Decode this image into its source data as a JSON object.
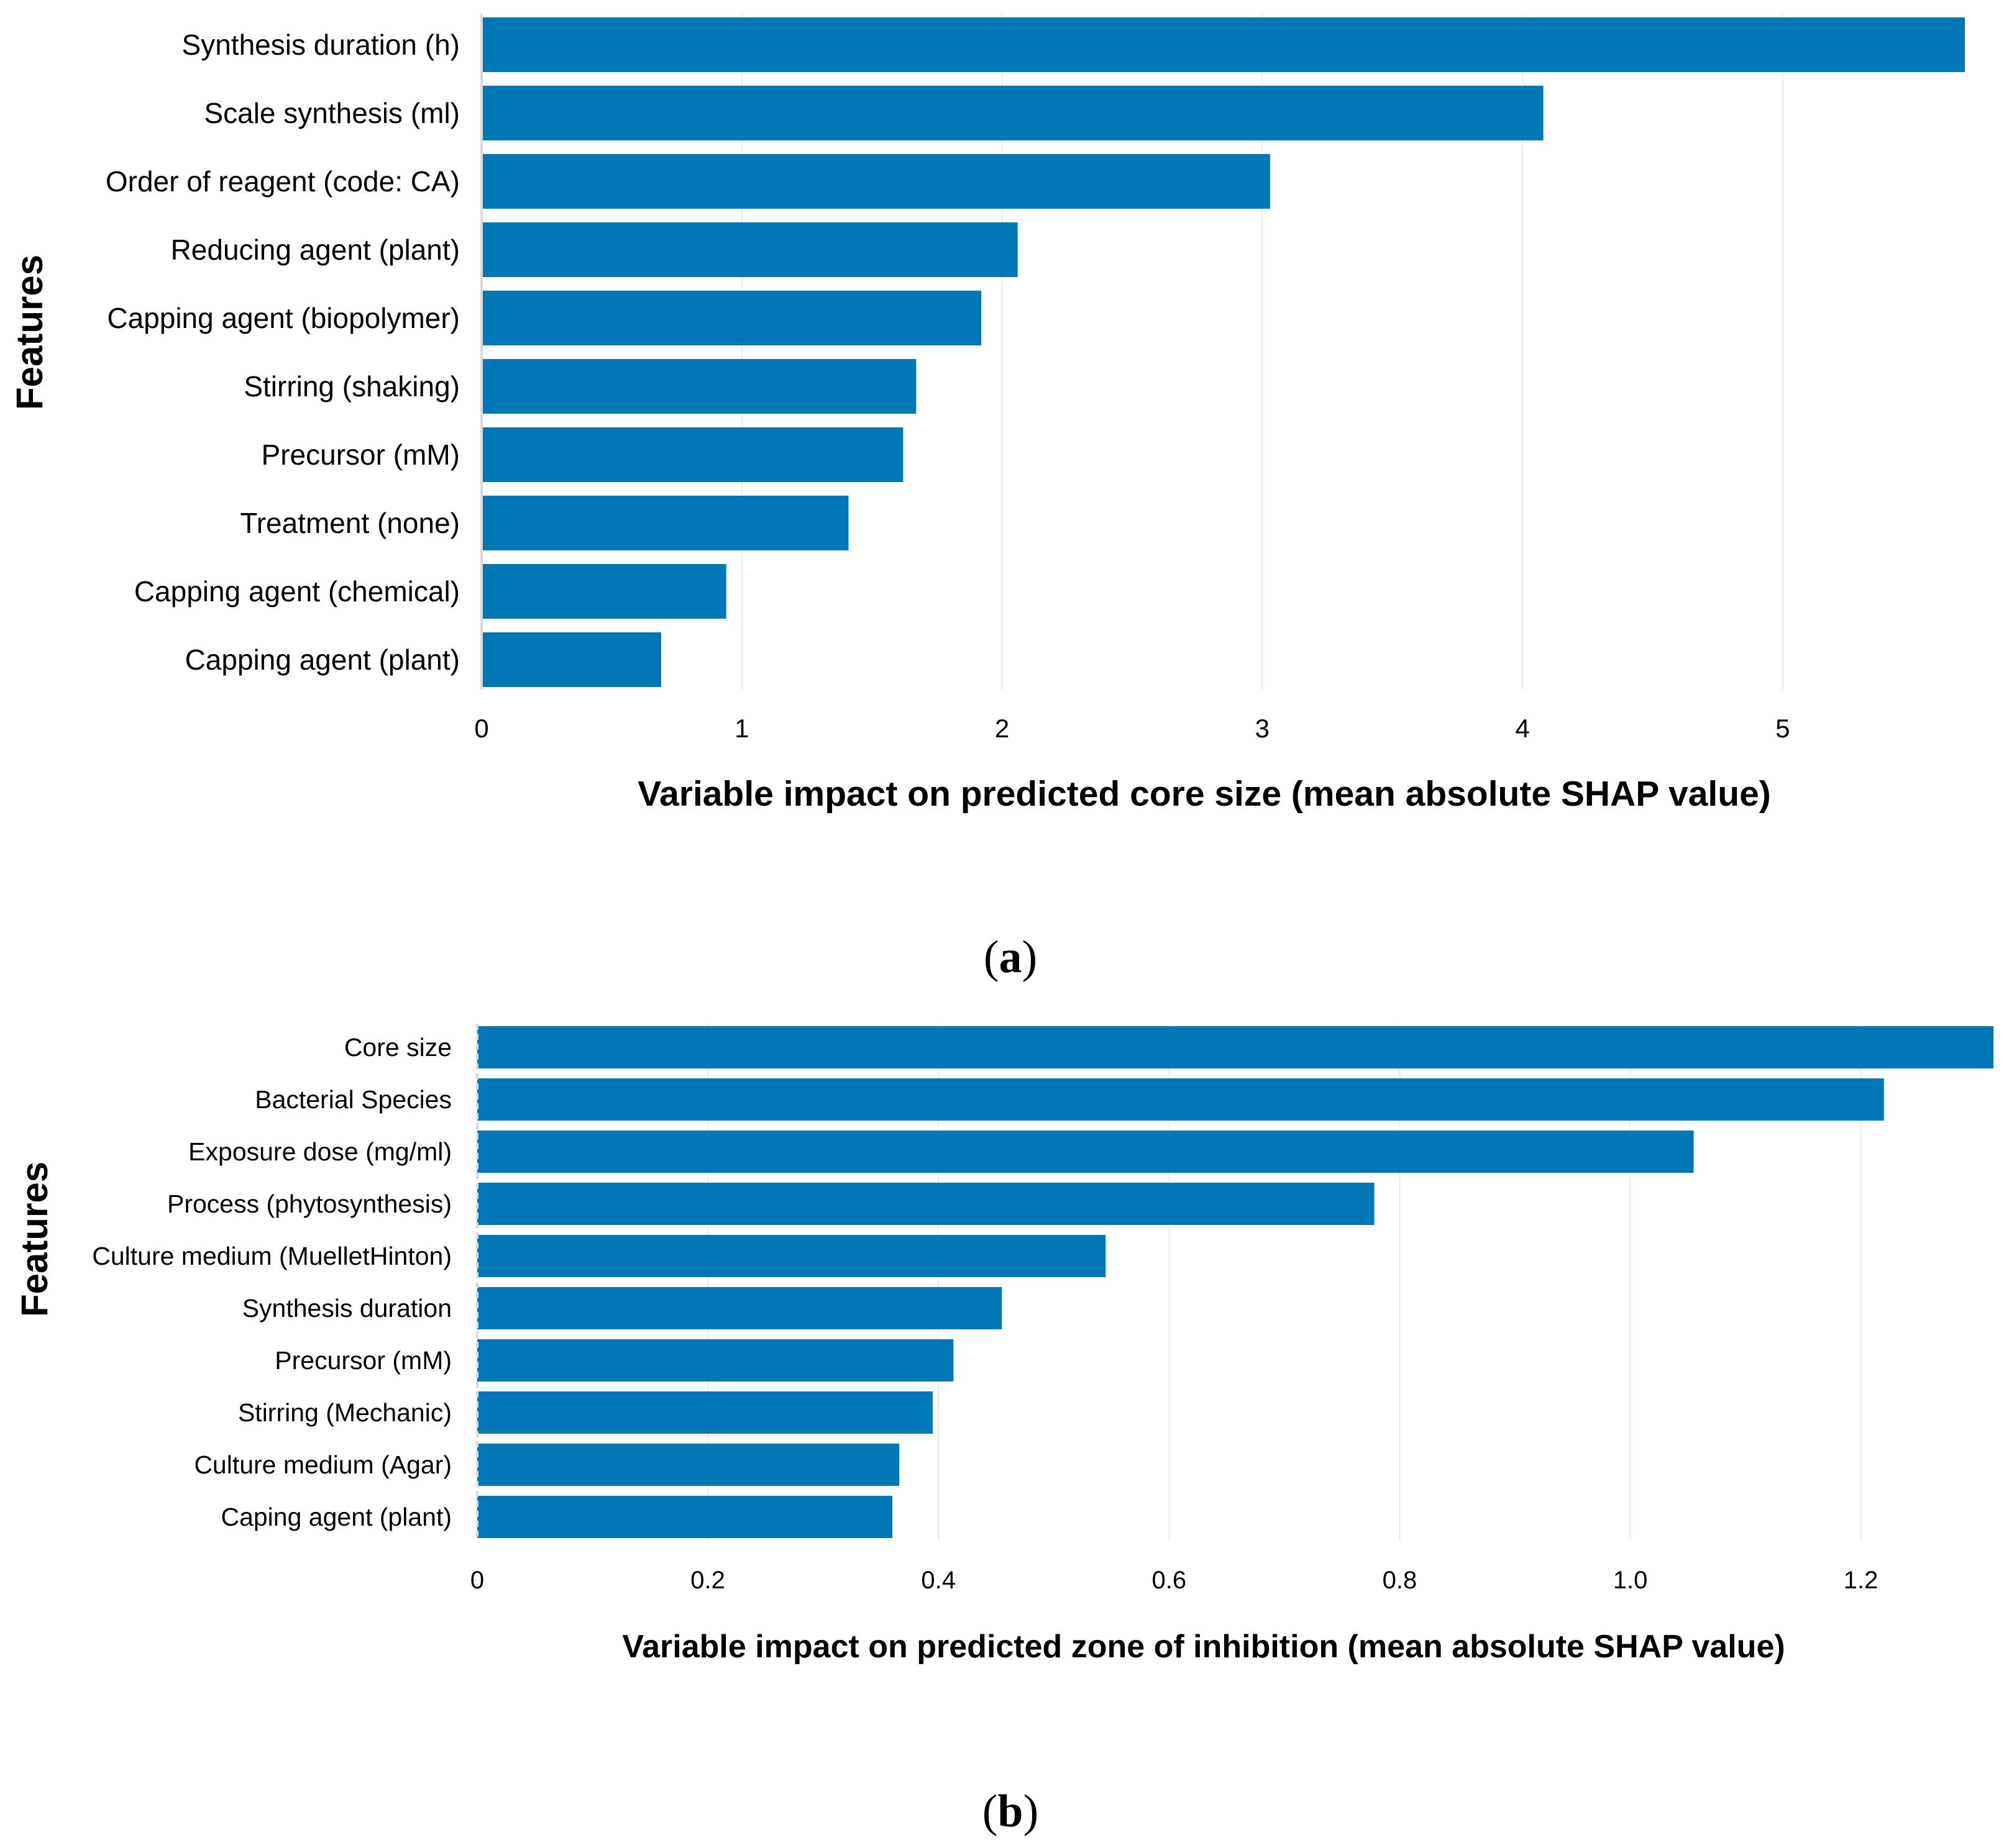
{
  "chart_data": [
    {
      "type": "bar",
      "orientation": "horizontal",
      "panel": "(a)",
      "panel_label_bold": "a",
      "ylabel": "Features",
      "xlabel": "Variable impact on predicted core size (mean absolute SHAP value)",
      "categories": [
        "Synthesis duration (h)",
        "Scale synthesis (ml)",
        "Order of reagent (code: CA)",
        "Reducing agent (plant)",
        "Capping agent (biopolymer)",
        "Stirring (shaking)",
        "Precursor (mM)",
        "Treatment (none)",
        "Capping agent (chemical)",
        "Capping agent (plant)"
      ],
      "values": [
        5.7,
        4.08,
        3.03,
        2.06,
        1.92,
        1.67,
        1.62,
        1.41,
        0.94,
        0.69
      ],
      "xlim": [
        0,
        5.7
      ],
      "xticks": [
        0,
        1,
        2,
        3,
        4,
        5
      ],
      "xtick_labels": [
        "0",
        "1",
        "2",
        "3",
        "4",
        "5"
      ],
      "color": "#0077b6"
    },
    {
      "type": "bar",
      "orientation": "horizontal",
      "panel": "(b)",
      "panel_label_bold": "b",
      "ylabel": "Features",
      "xlabel": "Variable impact on predicted zone of inhibition (mean absolute SHAP value)",
      "categories": [
        "Core size",
        "Bacterial Species",
        "Exposure dose (mg/ml)",
        "Process (phytosynthesis)",
        "Culture medium (MuelletHinton)",
        "Synthesis duration",
        "Precursor (mM)",
        "Stirring (Mechanic)",
        "Culture medium (Agar)",
        "Caping agent (plant)"
      ],
      "values": [
        1.315,
        1.22,
        1.055,
        0.778,
        0.545,
        0.455,
        0.413,
        0.395,
        0.366,
        0.36
      ],
      "xlim": [
        0,
        1.315
      ],
      "xticks": [
        0,
        0.2,
        0.4,
        0.6,
        0.8,
        1.0,
        1.2
      ],
      "xtick_labels": [
        "0",
        "0.2",
        "0.4",
        "0.6",
        "0.8",
        "1.0",
        "1.2"
      ],
      "color": "#0077b6"
    }
  ]
}
